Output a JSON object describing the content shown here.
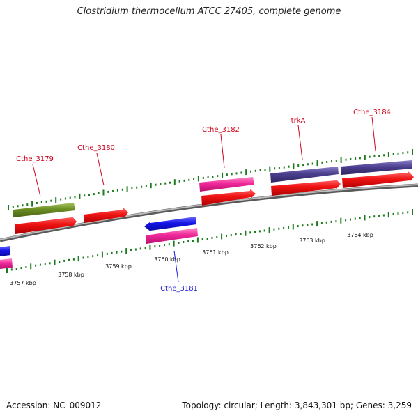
{
  "title": "Clostridium thermocellum ATCC 27405, complete genome",
  "footer": {
    "accession_label": "Accession:",
    "accession": "NC_009012",
    "topology_text": "Topology: circular; Length: 3,843,301 bp; Genes: 3,259"
  },
  "axis": {
    "ticks": [
      {
        "label": "3757 kbp",
        "kbp": 3757
      },
      {
        "label": "3758 kbp",
        "kbp": 3758
      },
      {
        "label": "3759 kbp",
        "kbp": 3759
      },
      {
        "label": "3760 kbp",
        "kbp": 3760
      },
      {
        "label": "3761 kbp",
        "kbp": 3761
      },
      {
        "label": "3762 kbp",
        "kbp": 3762
      },
      {
        "label": "3763 kbp",
        "kbp": 3763
      },
      {
        "label": "3764 kbp",
        "kbp": 3764
      }
    ]
  },
  "gene_labels": [
    {
      "name": "Cthe_3179",
      "color": "#d0021b"
    },
    {
      "name": "Cthe_3180",
      "color": "#d0021b"
    },
    {
      "name": "Cthe_3181",
      "color": "#1a1ad6"
    },
    {
      "name": "Cthe_3182",
      "color": "#d0021b"
    },
    {
      "name": "trkA",
      "color": "#d0021b"
    },
    {
      "name": "Cthe_3184",
      "color": "#d0021b"
    }
  ],
  "colors": {
    "cds": "#f01414",
    "gene_pink": "#f0289a",
    "gene_green": "#6b8e23",
    "gene_purple": "#4b3f8f",
    "gene_blue": "#1414e6",
    "backbone": "#8c8c8c",
    "tick": "#1e7a1e"
  }
}
